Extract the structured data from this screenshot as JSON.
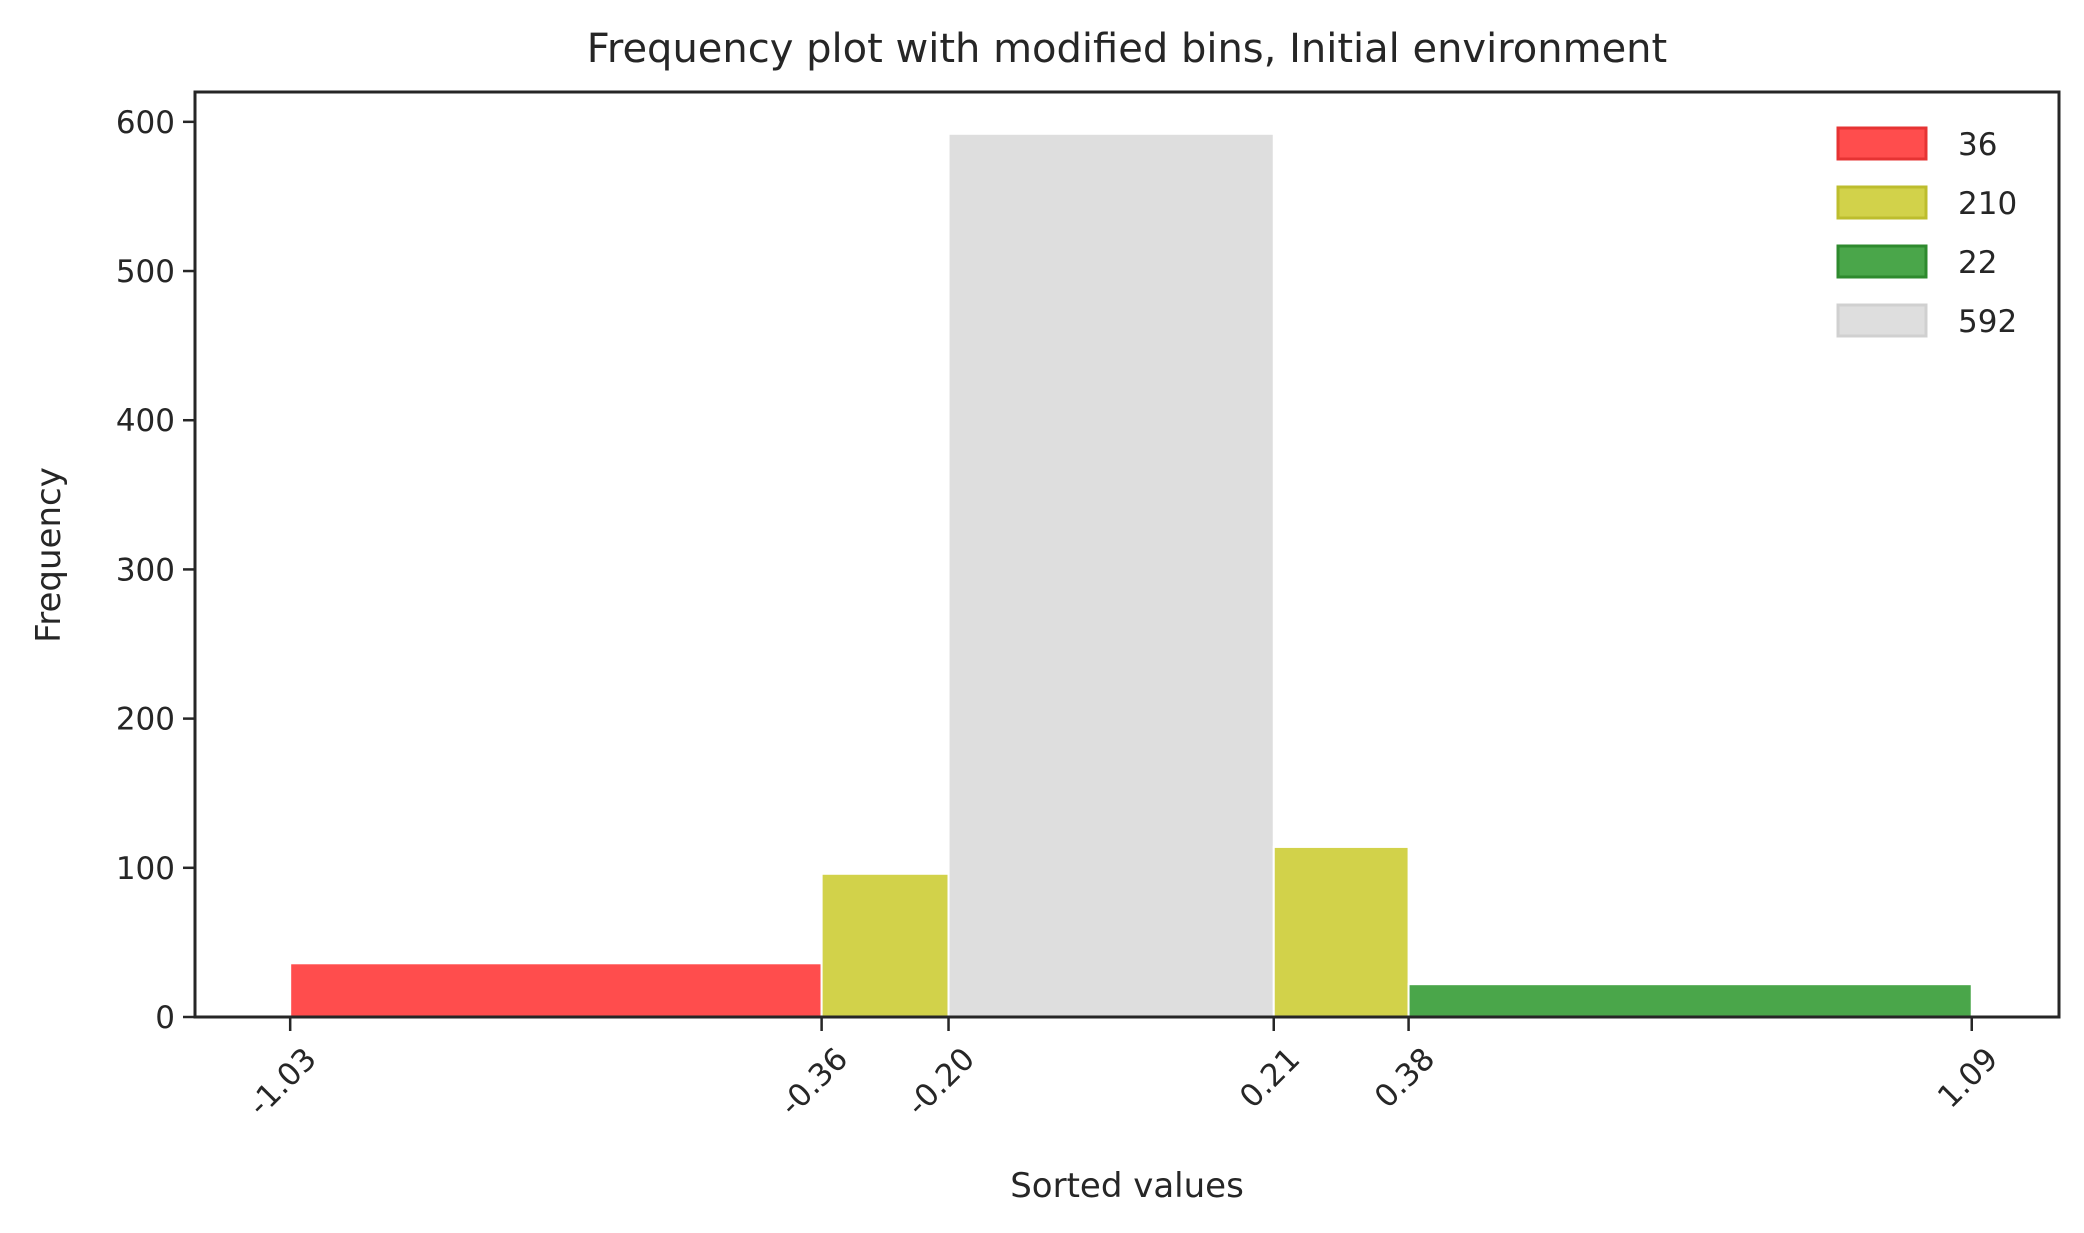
{
  "chart_data": {
    "type": "bar",
    "title": "Frequency plot with modified bins, Initial environment",
    "xlabel": "Sorted values",
    "ylabel": "Frequency",
    "xlim": [
      -1.15,
      1.2
    ],
    "ylim": [
      0,
      620
    ],
    "x_ticks": [
      {
        "value": -1.03,
        "label": "-1.03"
      },
      {
        "value": -0.36,
        "label": "-0.36"
      },
      {
        "value": -0.2,
        "label": "-0.20"
      },
      {
        "value": 0.21,
        "label": "0.21"
      },
      {
        "value": 0.38,
        "label": "0.38"
      },
      {
        "value": 1.09,
        "label": "1.09"
      }
    ],
    "y_ticks": [
      0,
      100,
      200,
      300,
      400,
      500,
      600
    ],
    "bins": [
      {
        "x0": -1.03,
        "x1": -0.36,
        "value": 36,
        "color": "#ff4d4d"
      },
      {
        "x0": -0.36,
        "x1": -0.2,
        "value": 96,
        "color": "#d2d24a"
      },
      {
        "x0": -0.2,
        "x1": 0.21,
        "value": 592,
        "color": "#dedede"
      },
      {
        "x0": 0.21,
        "x1": 0.38,
        "value": 114,
        "color": "#d2d24a"
      },
      {
        "x0": 0.38,
        "x1": 1.09,
        "value": 22,
        "color": "#4aa64a"
      }
    ],
    "legend": {
      "position": "top-right",
      "entries": [
        {
          "label": "36",
          "fill": "#ff4d4d",
          "stroke": "#e63333"
        },
        {
          "label": "210",
          "fill": "#d2d24a",
          "stroke": "#bdbd2e"
        },
        {
          "label": "22",
          "fill": "#4aa64a",
          "stroke": "#2e8a2e"
        },
        {
          "label": "592",
          "fill": "#dedede",
          "stroke": "#d0d0d0"
        }
      ]
    }
  }
}
